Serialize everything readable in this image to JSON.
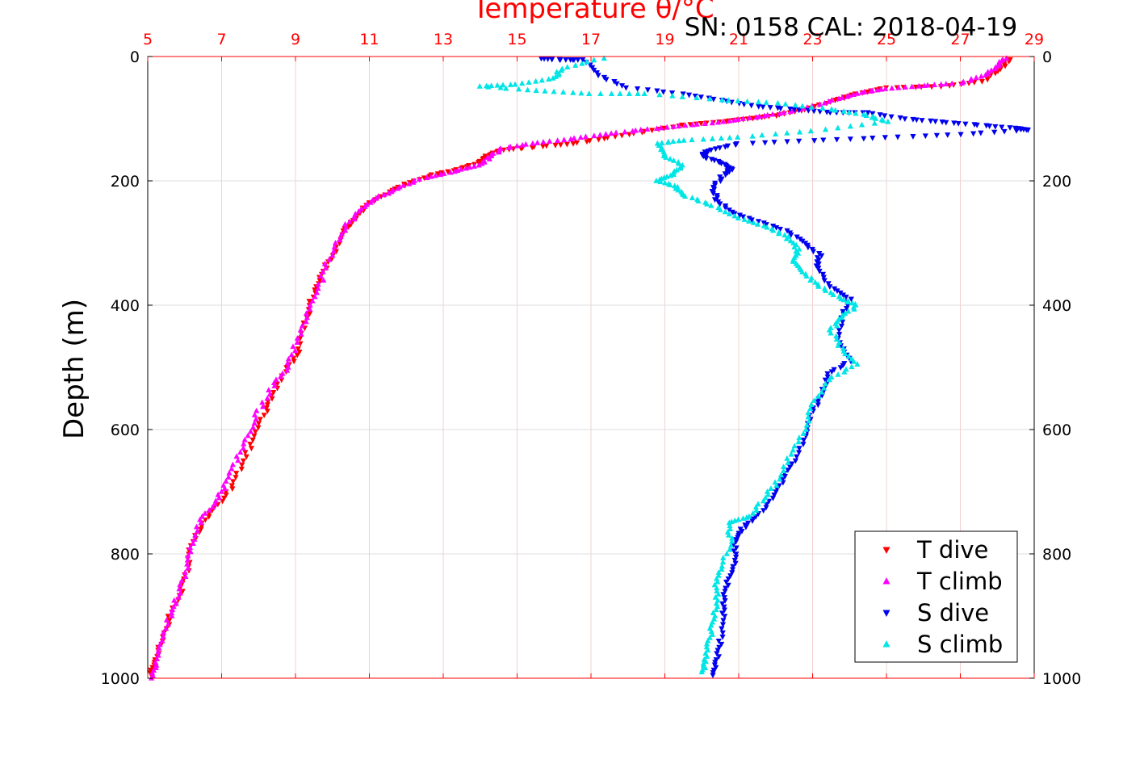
{
  "chart_data": {
    "type": "scatter",
    "title": "Temperature θ/°C",
    "subtitle": "SN: 0158  CAL: 2018-04-19",
    "ylabel": "Depth (m)",
    "xlabel": "",
    "xlim": [
      5,
      29
    ],
    "ylim": [
      0,
      1000
    ],
    "y_reversed": true,
    "x_ticks": [
      "5",
      "7",
      "9",
      "11",
      "13",
      "15",
      "17",
      "19",
      "21",
      "23",
      "25",
      "27",
      "29"
    ],
    "y_ticks": [
      "0",
      "200",
      "400",
      "600",
      "800",
      "1000"
    ],
    "x_tick_values": [
      5,
      7,
      9,
      11,
      13,
      15,
      17,
      19,
      21,
      23,
      25,
      27,
      29
    ],
    "y_tick_values": [
      0,
      200,
      400,
      600,
      800,
      1000
    ],
    "grid": true,
    "legend_position": "bottom-right",
    "colors": {
      "axis_top": "#ff0000",
      "grid": "#e8c8c8"
    },
    "series": [
      {
        "name": "T dive",
        "marker": "triangle-down",
        "color": "#ff0000",
        "points": [
          [
            28.3,
            5
          ],
          [
            28.1,
            20
          ],
          [
            27.6,
            40
          ],
          [
            26.5,
            48
          ],
          [
            25.0,
            50
          ],
          [
            24.2,
            60
          ],
          [
            23.6,
            70
          ],
          [
            22.8,
            85
          ],
          [
            22.0,
            95
          ],
          [
            21.2,
            100
          ],
          [
            20.5,
            105
          ],
          [
            19.5,
            110
          ],
          [
            18.5,
            120
          ],
          [
            17.5,
            130
          ],
          [
            16.5,
            140
          ],
          [
            15.5,
            145
          ],
          [
            14.6,
            150
          ],
          [
            14.2,
            160
          ],
          [
            14.0,
            170
          ],
          [
            13.5,
            180
          ],
          [
            12.7,
            190
          ],
          [
            12.0,
            205
          ],
          [
            11.5,
            220
          ],
          [
            11.0,
            235
          ],
          [
            10.6,
            260
          ],
          [
            10.3,
            280
          ],
          [
            10.0,
            320
          ],
          [
            9.7,
            350
          ],
          [
            9.5,
            380
          ],
          [
            9.3,
            420
          ],
          [
            9.1,
            470
          ],
          [
            8.8,
            500
          ],
          [
            8.4,
            540
          ],
          [
            8.2,
            570
          ],
          [
            7.9,
            610
          ],
          [
            7.6,
            650
          ],
          [
            7.3,
            690
          ],
          [
            6.9,
            720
          ],
          [
            6.5,
            750
          ],
          [
            6.2,
            780
          ],
          [
            6.1,
            820
          ],
          [
            5.9,
            860
          ],
          [
            5.6,
            900
          ],
          [
            5.4,
            940
          ],
          [
            5.2,
            970
          ],
          [
            5.1,
            995
          ]
        ]
      },
      {
        "name": "T climb",
        "marker": "triangle-up",
        "color": "#ff00ff",
        "points": [
          [
            28.2,
            3
          ],
          [
            28.0,
            15
          ],
          [
            27.7,
            30
          ],
          [
            27.0,
            43
          ],
          [
            26.0,
            47
          ],
          [
            25.0,
            52
          ],
          [
            24.3,
            58
          ],
          [
            23.7,
            68
          ],
          [
            22.9,
            82
          ],
          [
            22.1,
            92
          ],
          [
            21.3,
            99
          ],
          [
            20.4,
            106
          ],
          [
            19.4,
            112
          ],
          [
            18.4,
            118
          ],
          [
            17.4,
            125
          ],
          [
            16.4,
            133
          ],
          [
            15.4,
            140
          ],
          [
            14.6,
            148
          ],
          [
            14.3,
            160
          ],
          [
            14.0,
            175
          ],
          [
            13.3,
            185
          ],
          [
            12.5,
            195
          ],
          [
            11.8,
            210
          ],
          [
            11.3,
            225
          ],
          [
            10.8,
            245
          ],
          [
            10.4,
            270
          ],
          [
            10.1,
            300
          ],
          [
            9.8,
            340
          ],
          [
            9.6,
            380
          ],
          [
            9.3,
            420
          ],
          [
            9.0,
            460
          ],
          [
            8.8,
            500
          ],
          [
            8.4,
            530
          ],
          [
            8.0,
            570
          ],
          [
            7.7,
            610
          ],
          [
            7.4,
            650
          ],
          [
            7.1,
            690
          ],
          [
            6.8,
            720
          ],
          [
            6.4,
            750
          ],
          [
            6.2,
            790
          ],
          [
            6.0,
            830
          ],
          [
            5.8,
            870
          ],
          [
            5.6,
            900
          ],
          [
            5.4,
            940
          ],
          [
            5.2,
            975
          ],
          [
            5.1,
            1000
          ]
        ]
      },
      {
        "name": "S dive",
        "marker": "triangle-down",
        "color": "#0000ee",
        "points": [
          [
            15.6,
            3
          ],
          [
            16.2,
            5
          ],
          [
            16.8,
            5
          ],
          [
            17.2,
            30
          ],
          [
            18.0,
            50
          ],
          [
            19.5,
            60
          ],
          [
            20.5,
            70
          ],
          [
            21.5,
            80
          ],
          [
            22.5,
            85
          ],
          [
            23.5,
            90
          ],
          [
            24.5,
            90
          ],
          [
            25.5,
            100
          ],
          [
            26.5,
            105
          ],
          [
            27.5,
            110
          ],
          [
            28.5,
            115
          ],
          [
            28.8,
            118
          ],
          [
            27.0,
            125
          ],
          [
            25.0,
            130
          ],
          [
            23.0,
            135
          ],
          [
            21.0,
            140
          ],
          [
            20.2,
            150
          ],
          [
            20.0,
            160
          ],
          [
            20.5,
            170
          ],
          [
            20.8,
            180
          ],
          [
            20.6,
            190
          ],
          [
            20.3,
            210
          ],
          [
            20.4,
            230
          ],
          [
            20.8,
            250
          ],
          [
            21.5,
            265
          ],
          [
            22.3,
            280
          ],
          [
            22.8,
            300
          ],
          [
            23.2,
            320
          ],
          [
            23.1,
            340
          ],
          [
            23.5,
            370
          ],
          [
            24.0,
            390
          ],
          [
            23.8,
            420
          ],
          [
            23.7,
            460
          ],
          [
            24.0,
            490
          ],
          [
            23.4,
            510
          ],
          [
            23.3,
            540
          ],
          [
            23.0,
            570
          ],
          [
            22.8,
            610
          ],
          [
            22.5,
            650
          ],
          [
            22.2,
            680
          ],
          [
            21.9,
            710
          ],
          [
            21.5,
            740
          ],
          [
            21.1,
            760
          ],
          [
            20.9,
            780
          ],
          [
            20.9,
            810
          ],
          [
            20.7,
            840
          ],
          [
            20.6,
            870
          ],
          [
            20.6,
            900
          ],
          [
            20.5,
            940
          ],
          [
            20.4,
            970
          ],
          [
            20.3,
            995
          ]
        ]
      },
      {
        "name": "S climb",
        "marker": "triangle-up",
        "color": "#00e5e5",
        "points": [
          [
            17.3,
            3
          ],
          [
            16.2,
            20
          ],
          [
            16.0,
            35
          ],
          [
            15.0,
            45
          ],
          [
            14.0,
            48
          ],
          [
            15.5,
            55
          ],
          [
            17.0,
            60
          ],
          [
            18.5,
            60
          ],
          [
            20.5,
            70
          ],
          [
            22.0,
            75
          ],
          [
            23.5,
            85
          ],
          [
            24.5,
            95
          ],
          [
            25.0,
            105
          ],
          [
            23.0,
            120
          ],
          [
            21.0,
            130
          ],
          [
            19.5,
            135
          ],
          [
            18.8,
            140
          ],
          [
            19.0,
            160
          ],
          [
            19.5,
            175
          ],
          [
            19.2,
            190
          ],
          [
            18.8,
            200
          ],
          [
            19.3,
            210
          ],
          [
            19.6,
            225
          ],
          [
            20.3,
            240
          ],
          [
            21.0,
            260
          ],
          [
            21.8,
            275
          ],
          [
            22.3,
            290
          ],
          [
            22.6,
            310
          ],
          [
            22.5,
            330
          ],
          [
            22.8,
            350
          ],
          [
            23.2,
            370
          ],
          [
            23.8,
            390
          ],
          [
            24.2,
            400
          ],
          [
            23.8,
            420
          ],
          [
            23.5,
            440
          ],
          [
            23.8,
            470
          ],
          [
            24.2,
            495
          ],
          [
            23.4,
            520
          ],
          [
            23.0,
            560
          ],
          [
            22.8,
            600
          ],
          [
            22.4,
            640
          ],
          [
            22.1,
            680
          ],
          [
            21.7,
            710
          ],
          [
            21.3,
            740
          ],
          [
            20.7,
            750
          ],
          [
            20.8,
            780
          ],
          [
            20.5,
            820
          ],
          [
            20.4,
            850
          ],
          [
            20.4,
            880
          ],
          [
            20.3,
            910
          ],
          [
            20.2,
            940
          ],
          [
            20.1,
            970
          ],
          [
            20.0,
            990
          ]
        ]
      }
    ]
  }
}
